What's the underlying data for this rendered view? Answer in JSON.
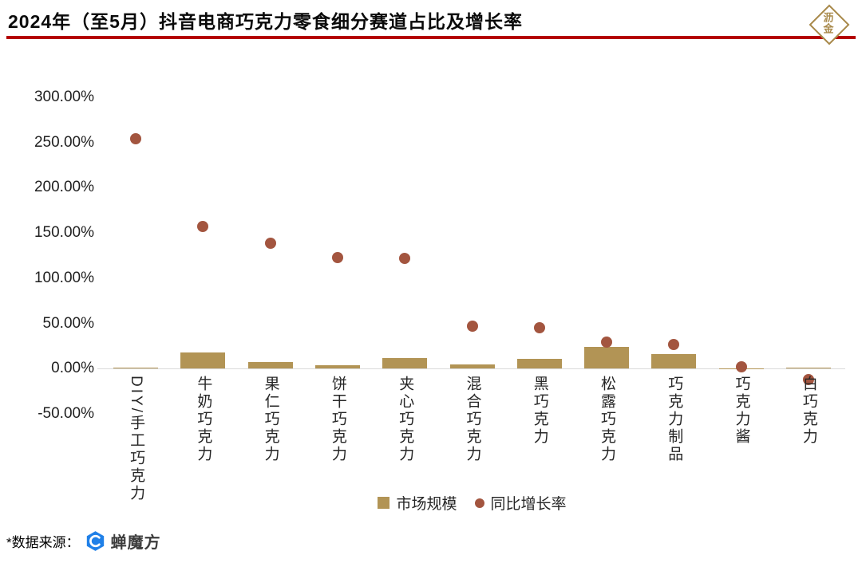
{
  "header": {
    "brand_logo_text": "沥金",
    "brand_color": "#a8894a",
    "underline_color": "#b40000"
  },
  "chart_data": {
    "type": "bar+scatter",
    "title": "2024年（至5月）抖音电商巧克力零食细分赛道占比及增长率",
    "unit": "percent",
    "categories": [
      "DIY/手工巧克力",
      "牛奶巧克力",
      "果仁巧克力",
      "饼干巧克力",
      "夹心巧克力",
      "混合巧克力",
      "黑巧克力",
      "松露巧克力",
      "巧克力制品",
      "巧克力酱",
      "白巧克力"
    ],
    "series": [
      {
        "name": "市场规模",
        "type": "bar",
        "color": "#b29455",
        "values": [
          1,
          18,
          7,
          4,
          12,
          4.5,
          11,
          24,
          16,
          0.5,
          1
        ]
      },
      {
        "name": "同比增长率",
        "type": "scatter",
        "color": "#a3553f",
        "values": [
          254,
          157,
          139,
          123,
          122,
          47,
          45,
          29,
          27,
          2,
          -12
        ]
      }
    ],
    "ylim": [
      -50,
      300
    ],
    "yticks": [
      {
        "label": "300.00%",
        "value": 300
      },
      {
        "label": "250.00%",
        "value": 250
      },
      {
        "label": "200.00%",
        "value": 200
      },
      {
        "label": "150.00%",
        "value": 150
      },
      {
        "label": "100.00%",
        "value": 100
      },
      {
        "label": "50.00%",
        "value": 50
      },
      {
        "label": "0.00%",
        "value": 0
      },
      {
        "label": "-50.00%",
        "value": -50
      }
    ],
    "grid": false,
    "legend_position": "bottom"
  },
  "footer": {
    "source_label": "*数据来源：",
    "source_name": "蝉魔方",
    "source_logo_color": "#2080e8"
  }
}
